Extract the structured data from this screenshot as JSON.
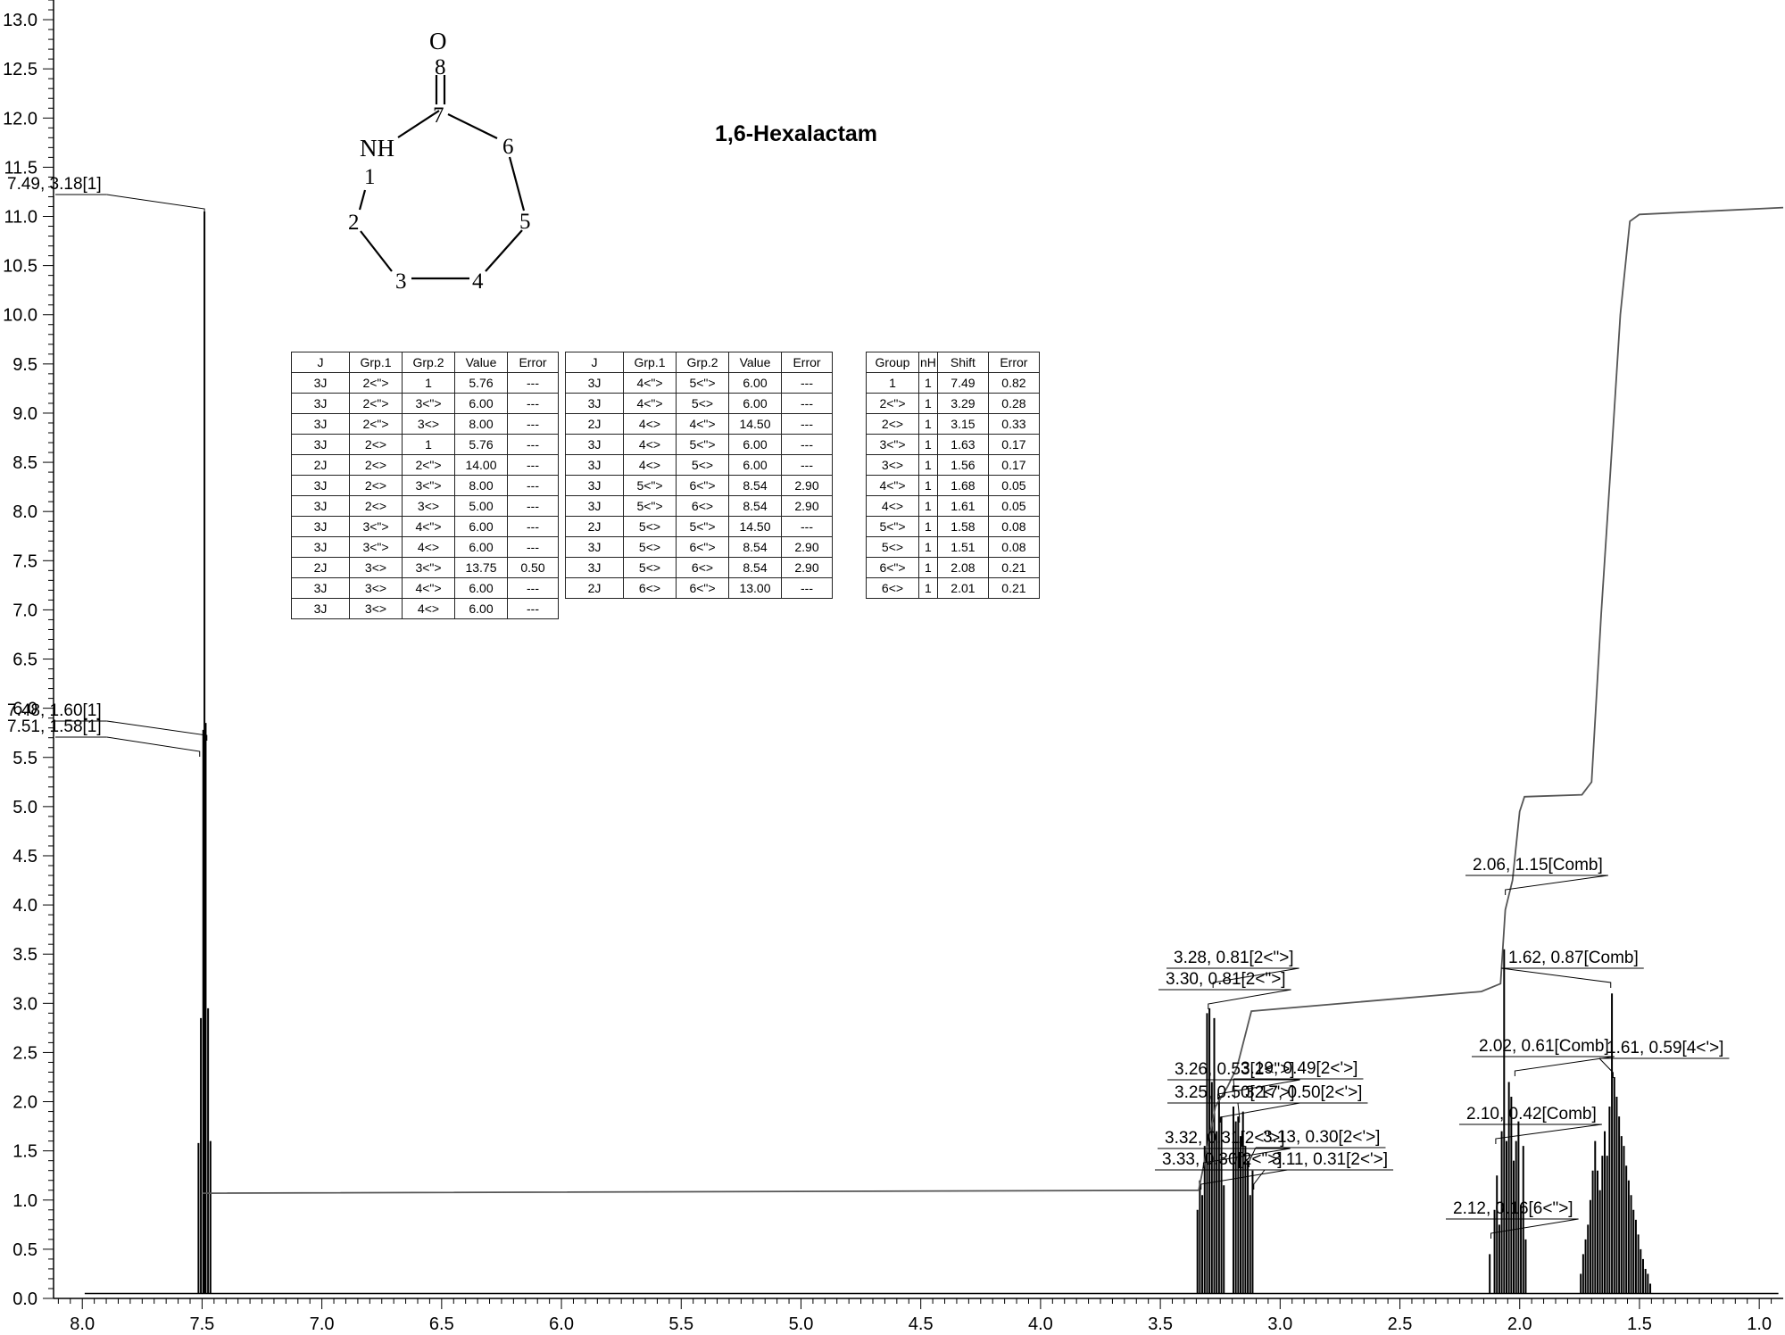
{
  "chart_data": {
    "type": "line",
    "title": "1,6-Hexalactam",
    "x_ticks": [
      "8.0",
      "7.5",
      "7.0",
      "6.5",
      "6.0",
      "5.5",
      "5.0",
      "4.5",
      "4.0",
      "3.5",
      "3.0",
      "2.5",
      "2.0",
      "1.5",
      "1.0"
    ],
    "y_ticks": [
      "0.0",
      "0.5",
      "1.0",
      "1.5",
      "2.0",
      "2.5",
      "3.0",
      "3.5",
      "4.0",
      "4.5",
      "5.0",
      "5.5",
      "6.0",
      "6.5",
      "7.0",
      "7.5",
      "8.0",
      "8.5",
      "9.0",
      "9.5",
      "10.0",
      "10.5",
      "11.0",
      "11.5",
      "12.0",
      "12.5",
      "13.0"
    ],
    "xlim": [
      8.12,
      0.9
    ],
    "ylim": [
      0,
      13.2
    ],
    "x_reversed": true,
    "grid": false,
    "peak_labels": [
      {
        "text": "7.49, 3.18[1]",
        "x": 7.49,
        "y": 3.18
      },
      {
        "text": "7.48, 1.60[1]",
        "x": 7.48,
        "y": 1.6
      },
      {
        "text": "7.51, 1.58[1]",
        "x": 7.51,
        "y": 1.58
      },
      {
        "text": "3.28, 0.81[2<\">]",
        "x": 3.28,
        "y": 0.81
      },
      {
        "text": "3.30, 0.81[2<\">]",
        "x": 3.3,
        "y": 0.81
      },
      {
        "text": "3.26, 0.53[2<\">]",
        "x": 3.26,
        "y": 0.53
      },
      {
        "text": "3.25, 0.50[2<\">]",
        "x": 3.25,
        "y": 0.5
      },
      {
        "text": "3.32, 0.31[2<\">]",
        "x": 3.32,
        "y": 0.31
      },
      {
        "text": "3.33, 0.30[2<\">]",
        "x": 3.33,
        "y": 0.3
      },
      {
        "text": "3.19, 0.49[2<'>]",
        "x": 3.19,
        "y": 0.49
      },
      {
        "text": "3.17, 0.50[2<'>]",
        "x": 3.17,
        "y": 0.5
      },
      {
        "text": "3.13, 0.30[2<'>]",
        "x": 3.13,
        "y": 0.3
      },
      {
        "text": "3.11, 0.31[2<'>]",
        "x": 3.11,
        "y": 0.31
      },
      {
        "text": "2.06, 1.15[Comb]",
        "x": 2.06,
        "y": 1.15
      },
      {
        "text": "2.02, 0.61[Comb]",
        "x": 2.02,
        "y": 0.61
      },
      {
        "text": "2.10, 0.42[Comb]",
        "x": 2.1,
        "y": 0.42
      },
      {
        "text": "2.12, 0.16[6<\">]",
        "x": 2.12,
        "y": 0.16
      },
      {
        "text": "1.62, 0.87[Comb]",
        "x": 1.62,
        "y": 0.87
      },
      {
        "text": "1.61, 0.59[4<'>]",
        "x": 1.61,
        "y": 0.59
      }
    ],
    "integral_curve": [
      [
        7.5,
        1.07
      ],
      [
        3.34,
        1.1
      ],
      [
        3.27,
        1.95
      ],
      [
        3.22,
        2.15
      ],
      [
        3.18,
        2.35
      ],
      [
        3.12,
        2.92
      ],
      [
        2.16,
        3.12
      ],
      [
        2.08,
        3.2
      ],
      [
        2.06,
        3.95
      ],
      [
        2.03,
        4.25
      ],
      [
        2.0,
        4.95
      ],
      [
        1.98,
        5.1
      ],
      [
        1.74,
        5.12
      ],
      [
        1.7,
        5.25
      ],
      [
        1.66,
        6.95
      ],
      [
        1.62,
        8.45
      ],
      [
        1.58,
        10.0
      ],
      [
        1.54,
        10.95
      ],
      [
        1.5,
        11.02
      ],
      [
        0.9,
        11.09
      ]
    ],
    "series": [
      {
        "values": [
          [
            7.515,
            1.58
          ],
          [
            7.505,
            2.85
          ],
          [
            7.495,
            5.78
          ],
          [
            7.49,
            11.05
          ],
          [
            7.485,
            5.85
          ],
          [
            7.475,
            2.95
          ],
          [
            7.465,
            1.6
          ]
        ]
      },
      {
        "values": [
          [
            3.345,
            0.9
          ],
          [
            3.335,
            1.2
          ],
          [
            3.325,
            1.05
          ],
          [
            3.315,
            1.55
          ],
          [
            3.305,
            2.9
          ],
          [
            3.295,
            2.95
          ],
          [
            3.285,
            2.2
          ],
          [
            3.275,
            2.85
          ],
          [
            3.265,
            1.7
          ],
          [
            3.255,
            2.05
          ],
          [
            3.245,
            1.85
          ],
          [
            3.235,
            1.15
          ],
          [
            3.195,
            1.95
          ],
          [
            3.185,
            1.8
          ],
          [
            3.175,
            1.85
          ],
          [
            3.165,
            1.65
          ],
          [
            3.155,
            1.9
          ],
          [
            3.145,
            1.55
          ],
          [
            3.135,
            1.4
          ],
          [
            3.125,
            1.05
          ],
          [
            3.115,
            1.3
          ],
          [
            2.125,
            0.45
          ],
          [
            2.105,
            0.9
          ],
          [
            2.095,
            1.25
          ],
          [
            2.085,
            0.75
          ],
          [
            2.075,
            1.7
          ],
          [
            2.065,
            3.55
          ],
          [
            2.055,
            1.6
          ],
          [
            2.045,
            2.2
          ],
          [
            2.035,
            2.05
          ],
          [
            2.025,
            1.4
          ],
          [
            2.015,
            1.6
          ],
          [
            2.005,
            1.8
          ],
          [
            1.995,
            0.95
          ],
          [
            1.985,
            1.55
          ],
          [
            1.975,
            0.6
          ],
          [
            1.745,
            0.25
          ],
          [
            1.735,
            0.45
          ],
          [
            1.725,
            0.6
          ],
          [
            1.715,
            0.75
          ],
          [
            1.705,
            1.0
          ],
          [
            1.695,
            1.3
          ],
          [
            1.685,
            1.6
          ],
          [
            1.675,
            1.3
          ],
          [
            1.665,
            1.1
          ],
          [
            1.655,
            1.45
          ],
          [
            1.645,
            1.7
          ],
          [
            1.635,
            1.45
          ],
          [
            1.625,
            1.95
          ],
          [
            1.615,
            3.1
          ],
          [
            1.605,
            2.25
          ],
          [
            1.595,
            2.05
          ],
          [
            1.585,
            1.85
          ],
          [
            1.575,
            1.65
          ],
          [
            1.565,
            1.55
          ],
          [
            1.555,
            1.35
          ],
          [
            1.545,
            1.2
          ],
          [
            1.535,
            1.05
          ],
          [
            1.525,
            0.9
          ],
          [
            1.515,
            0.8
          ],
          [
            1.505,
            0.65
          ],
          [
            1.495,
            0.5
          ],
          [
            1.485,
            0.4
          ],
          [
            1.475,
            0.3
          ],
          [
            1.465,
            0.25
          ],
          [
            1.455,
            0.15
          ]
        ]
      }
    ]
  },
  "molecule": {
    "o_label": "O",
    "nh_label": "NH",
    "atom_numbers": [
      "1",
      "2",
      "3",
      "4",
      "5",
      "6",
      "7",
      "8"
    ]
  },
  "coupling_table_1": {
    "headers": [
      "J",
      "Grp.1",
      "Grp.2",
      "Value",
      "Error"
    ],
    "rows": [
      [
        "3J",
        "2<\">",
        "1",
        "5.76",
        "---"
      ],
      [
        "3J",
        "2<\">",
        "3<\">",
        "6.00",
        "---"
      ],
      [
        "3J",
        "2<\">",
        "3<>",
        "8.00",
        "---"
      ],
      [
        "3J",
        "2<>",
        "1",
        "5.76",
        "---"
      ],
      [
        "2J",
        "2<>",
        "2<\">",
        "14.00",
        "---"
      ],
      [
        "3J",
        "2<>",
        "3<\">",
        "8.00",
        "---"
      ],
      [
        "3J",
        "2<>",
        "3<>",
        "5.00",
        "---"
      ],
      [
        "3J",
        "3<\">",
        "4<\">",
        "6.00",
        "---"
      ],
      [
        "3J",
        "3<\">",
        "4<>",
        "6.00",
        "---"
      ],
      [
        "2J",
        "3<>",
        "3<\">",
        "13.75",
        "0.50"
      ],
      [
        "3J",
        "3<>",
        "4<\">",
        "6.00",
        "---"
      ],
      [
        "3J",
        "3<>",
        "4<>",
        "6.00",
        "---"
      ]
    ]
  },
  "coupling_table_2": {
    "headers": [
      "J",
      "Grp.1",
      "Grp.2",
      "Value",
      "Error"
    ],
    "rows": [
      [
        "3J",
        "4<\">",
        "5<\">",
        "6.00",
        "---"
      ],
      [
        "3J",
        "4<\">",
        "5<>",
        "6.00",
        "---"
      ],
      [
        "2J",
        "4<>",
        "4<\">",
        "14.50",
        "---"
      ],
      [
        "3J",
        "4<>",
        "5<\">",
        "6.00",
        "---"
      ],
      [
        "3J",
        "4<>",
        "5<>",
        "6.00",
        "---"
      ],
      [
        "3J",
        "5<\">",
        "6<\">",
        "8.54",
        "2.90"
      ],
      [
        "3J",
        "5<\">",
        "6<>",
        "8.54",
        "2.90"
      ],
      [
        "2J",
        "5<>",
        "5<\">",
        "14.50",
        "---"
      ],
      [
        "3J",
        "5<>",
        "6<\">",
        "8.54",
        "2.90"
      ],
      [
        "3J",
        "5<>",
        "6<>",
        "8.54",
        "2.90"
      ],
      [
        "2J",
        "6<>",
        "6<\">",
        "13.00",
        "---"
      ]
    ]
  },
  "shift_table": {
    "headers": [
      "Group",
      "nH",
      "Shift",
      "Error"
    ],
    "rows": [
      [
        "1",
        "1",
        "7.49",
        "0.82"
      ],
      [
        "2<\">",
        "1",
        "3.29",
        "0.28"
      ],
      [
        "2<>",
        "1",
        "3.15",
        "0.33"
      ],
      [
        "3<\">",
        "1",
        "1.63",
        "0.17"
      ],
      [
        "3<>",
        "1",
        "1.56",
        "0.17"
      ],
      [
        "4<\">",
        "1",
        "1.68",
        "0.05"
      ],
      [
        "4<>",
        "1",
        "1.61",
        "0.05"
      ],
      [
        "5<\">",
        "1",
        "1.58",
        "0.08"
      ],
      [
        "5<>",
        "1",
        "1.51",
        "0.08"
      ],
      [
        "6<\">",
        "1",
        "2.08",
        "0.21"
      ],
      [
        "6<>",
        "1",
        "2.01",
        "0.21"
      ]
    ]
  }
}
